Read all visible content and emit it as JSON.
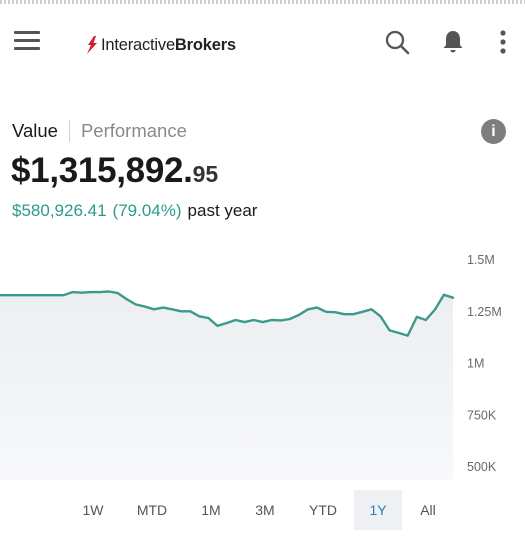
{
  "app": {
    "logo_prefix": "Interactive",
    "logo_suffix": "Brokers"
  },
  "header": {
    "icons": [
      "hamburger-menu-icon",
      "search-icon",
      "bell-icon",
      "more-vertical-icon"
    ]
  },
  "tabs": [
    {
      "label": "Value",
      "active": true
    },
    {
      "label": "Performance",
      "active": false
    }
  ],
  "portfolio": {
    "value_integer": "$1,315,892.",
    "value_decimal": "95",
    "change_amount": "$580,926.41",
    "change_percent": "(79.04%)",
    "change_period": "past year"
  },
  "colors": {
    "accent_green": "#2a9c8a",
    "line": "#3a9a8c",
    "range_active_text": "#2a7fb0"
  },
  "chart_data": {
    "type": "area",
    "y_ticks": [
      "1.5M",
      "1.25M",
      "1M",
      "750K",
      "500K"
    ],
    "ylim": [
      500000,
      1500000
    ],
    "x_range": [
      "1Y"
    ],
    "values": [
      1330000,
      1330000,
      1330000,
      1330000,
      1330000,
      1330000,
      1330000,
      1330000,
      1345000,
      1342000,
      1345000,
      1345000,
      1348000,
      1340000,
      1310000,
      1285000,
      1275000,
      1262000,
      1270000,
      1262000,
      1252000,
      1252000,
      1228000,
      1220000,
      1182000,
      1195000,
      1210000,
      1200000,
      1210000,
      1200000,
      1210000,
      1208000,
      1215000,
      1235000,
      1262000,
      1270000,
      1250000,
      1248000,
      1238000,
      1238000,
      1250000,
      1262000,
      1228000,
      1160000,
      1148000,
      1135000,
      1225000,
      1210000,
      1260000,
      1332000,
      1318000
    ]
  },
  "ranges": [
    {
      "label": "1W",
      "active": false
    },
    {
      "label": "MTD",
      "active": false
    },
    {
      "label": "1M",
      "active": false
    },
    {
      "label": "3M",
      "active": false
    },
    {
      "label": "YTD",
      "active": false
    },
    {
      "label": "1Y",
      "active": true
    },
    {
      "label": "All",
      "active": false
    }
  ]
}
